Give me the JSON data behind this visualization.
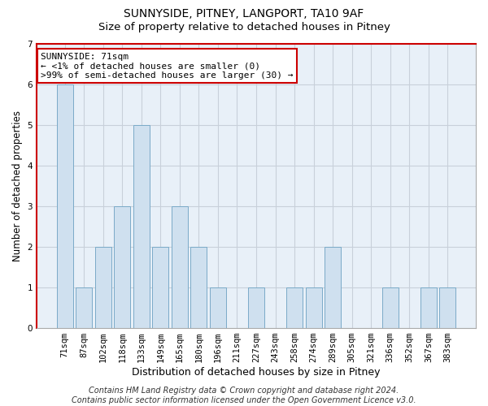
{
  "title": "SUNNYSIDE, PITNEY, LANGPORT, TA10 9AF",
  "subtitle": "Size of property relative to detached houses in Pitney",
  "xlabel": "Distribution of detached houses by size in Pitney",
  "ylabel": "Number of detached properties",
  "categories": [
    "71sqm",
    "87sqm",
    "102sqm",
    "118sqm",
    "133sqm",
    "149sqm",
    "165sqm",
    "180sqm",
    "196sqm",
    "211sqm",
    "227sqm",
    "243sqm",
    "258sqm",
    "274sqm",
    "289sqm",
    "305sqm",
    "321sqm",
    "336sqm",
    "352sqm",
    "367sqm",
    "383sqm"
  ],
  "values": [
    6,
    1,
    2,
    3,
    5,
    2,
    3,
    2,
    1,
    0,
    1,
    0,
    1,
    1,
    2,
    0,
    0,
    1,
    0,
    1,
    1
  ],
  "bar_color": "#cfe0ef",
  "bar_edge_color": "#7aaac8",
  "ylim": [
    0,
    7
  ],
  "yticks": [
    0,
    1,
    2,
    3,
    4,
    5,
    6,
    7
  ],
  "annotation_text": "SUNNYSIDE: 71sqm\n← <1% of detached houses are smaller (0)\n>99% of semi-detached houses are larger (30) →",
  "annotation_box_color": "#ffffff",
  "annotation_box_edge_color": "#cc0000",
  "footer_text": "Contains HM Land Registry data © Crown copyright and database right 2024.\nContains public sector information licensed under the Open Government Licence v3.0.",
  "background_color": "#e8f0f8",
  "grid_color": "#c8d0da",
  "spine_red_color": "#cc0000",
  "spine_gray_color": "#aaaaaa",
  "title_fontsize": 10,
  "subtitle_fontsize": 9.5,
  "xlabel_fontsize": 9,
  "ylabel_fontsize": 8.5,
  "tick_fontsize": 7.5,
  "footer_fontsize": 7,
  "ann_fontsize": 8
}
